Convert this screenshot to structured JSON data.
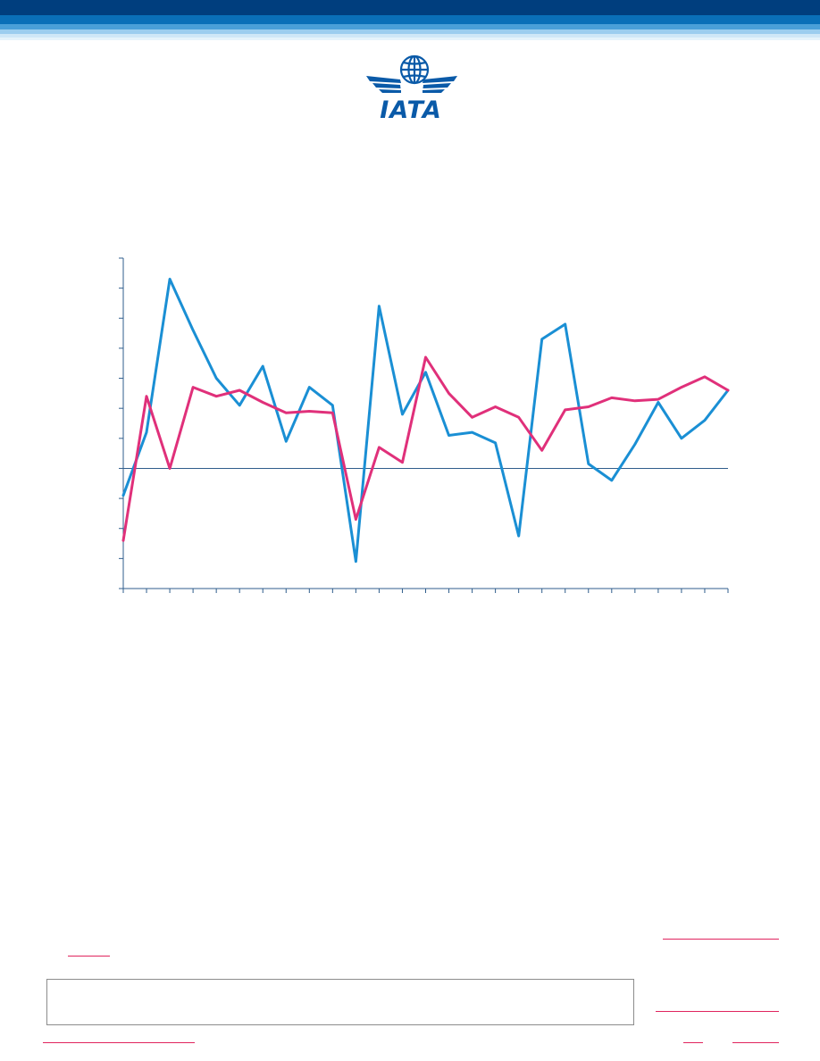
{
  "brand": {
    "logo_text": "IATA",
    "colors": {
      "navy": "#003e7e",
      "blue": "#0a6fb8",
      "light_blue": "#bfe0f5",
      "accent_pink": "#e0245e"
    }
  },
  "chart_data": {
    "type": "line",
    "title": "",
    "xlabel": "",
    "ylabel": "",
    "ylim": [
      -4,
      7
    ],
    "y_tick_count": 12,
    "x_tick_count": 27,
    "zero_line": true,
    "grid": false,
    "legend": "none",
    "series": [
      {
        "color": "#1a8fd4",
        "values": [
          -0.9,
          1.2,
          6.3,
          4.6,
          3.0,
          2.1,
          3.4,
          0.9,
          2.7,
          2.1,
          -3.1,
          5.4,
          1.8,
          3.2,
          1.1,
          1.2,
          0.85,
          -2.25,
          4.3,
          4.8,
          0.15,
          -0.4,
          0.8,
          2.2,
          1.0,
          1.6,
          2.6
        ]
      },
      {
        "color": "#e0307a",
        "values": [
          -2.4,
          2.4,
          0.0,
          2.7,
          2.4,
          2.6,
          2.2,
          1.85,
          1.9,
          1.85,
          -1.7,
          0.7,
          0.2,
          3.7,
          2.5,
          1.7,
          2.05,
          1.7,
          0.6,
          1.95,
          2.05,
          2.35,
          2.25,
          2.3,
          2.7,
          3.05,
          2.6
        ]
      }
    ]
  }
}
